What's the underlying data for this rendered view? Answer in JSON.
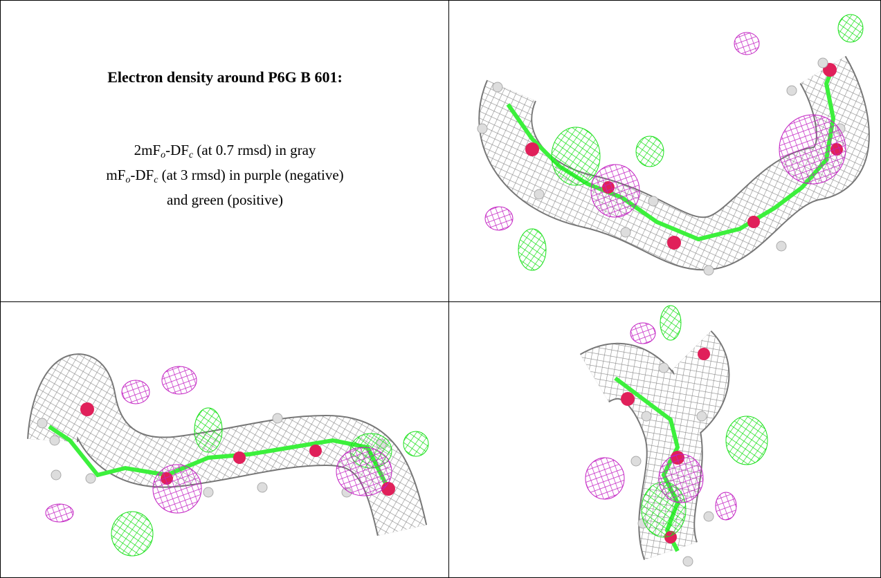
{
  "caption": {
    "title": "Electron density around P6G B 601:",
    "lines": [
      [
        "2mF",
        {
          "sub": "o"
        },
        "-DF",
        {
          "sub": "c"
        },
        " (at 0.7 rmsd) in gray"
      ],
      [
        "mF",
        {
          "sub": "o"
        },
        "-DF",
        {
          "sub": "c"
        },
        " (at 3 rmsd) in purple (negative)"
      ],
      [
        "and green (positive)"
      ]
    ]
  }
}
